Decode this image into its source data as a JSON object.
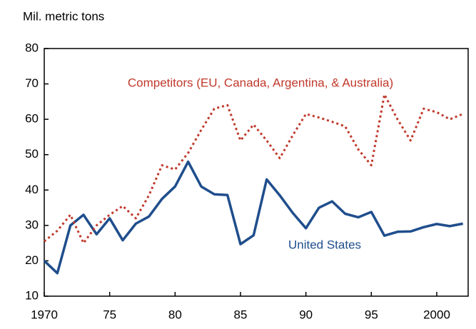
{
  "chart_data": {
    "type": "line",
    "y_axis_label": "Mil. metric tons",
    "x": [
      1970,
      1971,
      1972,
      1973,
      1974,
      1975,
      1976,
      1977,
      1978,
      1979,
      1980,
      1981,
      1982,
      1983,
      1984,
      1985,
      1986,
      1987,
      1988,
      1989,
      1990,
      1991,
      1992,
      1993,
      1994,
      1995,
      1996,
      1997,
      1998,
      1999,
      2000,
      2001,
      2002
    ],
    "series": [
      {
        "name": "United States",
        "color": "#1f4e8c",
        "style": "solid",
        "values": [
          20,
          16.5,
          30,
          33,
          27.5,
          32,
          25.8,
          30.5,
          32.5,
          37.5,
          41,
          48,
          41,
          38.8,
          38.6,
          24.7,
          27.2,
          43,
          38.5,
          33.5,
          29.2,
          35,
          36.8,
          33.3,
          32.3,
          33.8,
          27.1,
          28.2,
          28.3,
          29.5,
          30.4,
          29.8,
          30.5
        ]
      },
      {
        "name": "Competitors (EU, Canada, Argentina, & Australia)",
        "color": "#c0392b",
        "style": "dotted",
        "values": [
          25.5,
          28.5,
          33,
          25,
          30,
          33,
          35.5,
          32,
          38.5,
          47,
          45.8,
          50.5,
          57,
          63,
          64,
          54,
          58.5,
          54,
          49,
          55.5,
          61.5,
          60.5,
          59.3,
          58,
          51.5,
          47,
          67,
          60,
          54,
          63,
          62,
          60,
          61.5
        ]
      }
    ],
    "xlim": [
      1970,
      2002.4
    ],
    "ylim": [
      10,
      80
    ],
    "xticks": [
      {
        "value": 1970,
        "label": "1970"
      },
      {
        "value": 1975,
        "label": "75"
      },
      {
        "value": 1980,
        "label": "80"
      },
      {
        "value": 1985,
        "label": "85"
      },
      {
        "value": 1990,
        "label": "90"
      },
      {
        "value": 1995,
        "label": "95"
      },
      {
        "value": 2000,
        "label": "2000"
      }
    ],
    "yticks": [
      10,
      20,
      30,
      40,
      50,
      60,
      70,
      80
    ]
  }
}
